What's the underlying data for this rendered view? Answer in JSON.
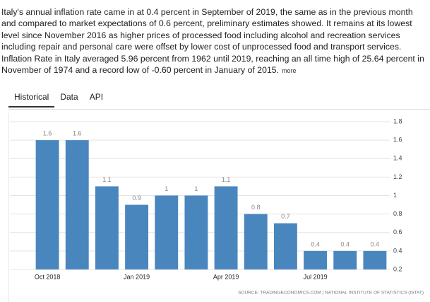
{
  "summary": {
    "lines": [
      "Italy's annual inflation rate came in at 0.4 percent in September of 2019, the same as in the previous month",
      "and compared to market expectations of 0.6 percent, preliminary estimates showed. It remains at its lowest",
      "level since November 2016 as higher prices of processed food including alcohol and recreation services",
      "including repair and personal care were offset by lower cost of unprocessed food and transport services.",
      "Inflation Rate in Italy averaged 5.96 percent from 1962 until 2019, reaching an all time high of 25.64 percent in",
      "November of 1974 and a record low of -0.60 percent in January of 2015."
    ],
    "more": "more"
  },
  "tabs": [
    "Historical",
    "Data",
    "API"
  ],
  "chart_data": {
    "type": "bar",
    "categories": [
      "Oct 2018",
      null,
      null,
      "Jan 2019",
      null,
      null,
      "Apr 2019",
      null,
      null,
      "Jul 2019",
      null,
      null
    ],
    "values": [
      1.6,
      1.6,
      1.1,
      0.9,
      1,
      1,
      1.1,
      0.8,
      0.7,
      0.4,
      0.4,
      0.4
    ],
    "color": "#4a86be",
    "ylim": [
      0.2,
      1.8
    ],
    "yticks": [
      0.2,
      0.4,
      0.6,
      0.8,
      1,
      1.2,
      1.4,
      1.6,
      1.8
    ],
    "grid": true,
    "source": "SOURCE: TRADINGECONOMICS.COM | NATIONAL INSTITUTE OF STATISTICS (ISTAT)"
  }
}
